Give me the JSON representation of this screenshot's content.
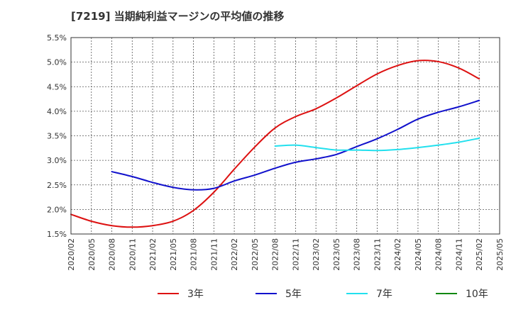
{
  "chart_data": {
    "type": "line",
    "title": "[7219]  当期純利益マージンの平均値の推移",
    "y_ticks": [
      "1.5%",
      "2.0%",
      "2.5%",
      "3.0%",
      "3.5%",
      "4.0%",
      "4.5%",
      "5.0%",
      "5.5%"
    ],
    "ylim": [
      1.5,
      5.5
    ],
    "x_ticks": [
      "2020/02",
      "2020/05",
      "2020/08",
      "2020/11",
      "2021/02",
      "2021/05",
      "2021/08",
      "2021/11",
      "2022/02",
      "2022/05",
      "2022/08",
      "2022/11",
      "2023/02",
      "2023/05",
      "2023/08",
      "2023/11",
      "2024/02",
      "2024/05",
      "2024/08",
      "2024/11",
      "2025/02",
      "2025/05"
    ],
    "grid": true,
    "legend_position": "bottom",
    "series": [
      {
        "name": "3年",
        "color": "#dd1111",
        "points": [
          [
            "2020/02",
            1.9
          ],
          [
            "2020/05",
            1.76
          ],
          [
            "2020/08",
            1.67
          ],
          [
            "2020/11",
            1.64
          ],
          [
            "2021/02",
            1.67
          ],
          [
            "2021/05",
            1.76
          ],
          [
            "2021/08",
            1.98
          ],
          [
            "2021/11",
            2.35
          ],
          [
            "2022/02",
            2.82
          ],
          [
            "2022/05",
            3.27
          ],
          [
            "2022/08",
            3.66
          ],
          [
            "2022/11",
            3.89
          ],
          [
            "2023/02",
            4.05
          ],
          [
            "2023/05",
            4.27
          ],
          [
            "2023/08",
            4.52
          ],
          [
            "2023/11",
            4.76
          ],
          [
            "2024/02",
            4.93
          ],
          [
            "2024/05",
            5.03
          ],
          [
            "2024/08",
            5.01
          ],
          [
            "2024/11",
            4.88
          ],
          [
            "2025/02",
            4.66
          ]
        ]
      },
      {
        "name": "5年",
        "color": "#1111cc",
        "points": [
          [
            "2020/08",
            2.77
          ],
          [
            "2020/11",
            2.67
          ],
          [
            "2021/02",
            2.55
          ],
          [
            "2021/05",
            2.45
          ],
          [
            "2021/08",
            2.4
          ],
          [
            "2021/11",
            2.43
          ],
          [
            "2022/02",
            2.58
          ],
          [
            "2022/05",
            2.7
          ],
          [
            "2022/08",
            2.84
          ],
          [
            "2022/11",
            2.96
          ],
          [
            "2023/02",
            3.03
          ],
          [
            "2023/05",
            3.12
          ],
          [
            "2023/08",
            3.28
          ],
          [
            "2023/11",
            3.44
          ],
          [
            "2024/02",
            3.63
          ],
          [
            "2024/05",
            3.84
          ],
          [
            "2024/08",
            3.98
          ],
          [
            "2024/11",
            4.09
          ],
          [
            "2025/02",
            4.22
          ]
        ]
      },
      {
        "name": "7年",
        "color": "#22e0ee",
        "points": [
          [
            "2022/08",
            3.29
          ],
          [
            "2022/11",
            3.31
          ],
          [
            "2023/02",
            3.26
          ],
          [
            "2023/05",
            3.21
          ],
          [
            "2023/08",
            3.21
          ],
          [
            "2023/11",
            3.2
          ],
          [
            "2024/02",
            3.22
          ],
          [
            "2024/05",
            3.26
          ],
          [
            "2024/08",
            3.31
          ],
          [
            "2024/11",
            3.37
          ],
          [
            "2025/02",
            3.45
          ]
        ]
      },
      {
        "name": "10年",
        "color": "#118811",
        "points": []
      }
    ]
  }
}
